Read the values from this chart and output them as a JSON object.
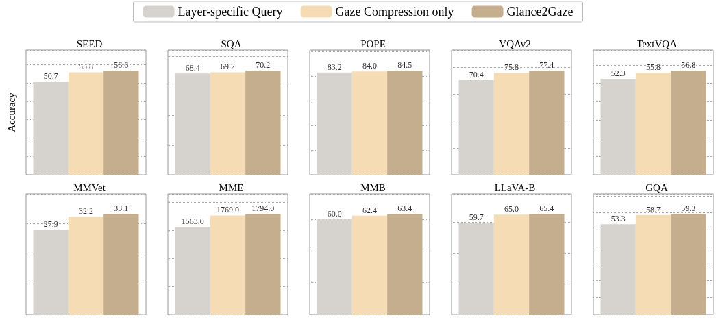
{
  "chart_data": [
    {
      "type": "bar",
      "title": "SEED",
      "ylabel": "Accuracy",
      "categories": [
        null
      ],
      "legend": "top",
      "grid": "y",
      "tick_labels": false,
      "series": [
        {
          "name": "Layer-specific Query",
          "color": "#d6d3cf",
          "values": [
            50.7
          ],
          "value_labels": [
            "50.7"
          ]
        },
        {
          "name": "Gaze Compression only",
          "color": "#f5dcb5",
          "values": [
            55.8
          ],
          "value_labels": [
            "55.8"
          ]
        },
        {
          "name": "Glance2Gaze",
          "color": "#c4ae8e",
          "values": [
            56.6
          ],
          "value_labels": [
            "56.6"
          ]
        }
      ]
    },
    {
      "type": "bar",
      "title": "SQA",
      "categories": [
        null
      ],
      "grid": "y",
      "tick_labels": false,
      "series": [
        {
          "color": "#d6d3cf",
          "values": [
            68.4
          ],
          "value_labels": [
            "68.4"
          ]
        },
        {
          "color": "#f5dcb5",
          "values": [
            69.2
          ],
          "value_labels": [
            "69.2"
          ]
        },
        {
          "color": "#c4ae8e",
          "values": [
            70.2
          ],
          "value_labels": [
            "70.2"
          ]
        }
      ]
    },
    {
      "type": "bar",
      "title": "POPE",
      "categories": [
        null
      ],
      "grid": "y",
      "tick_labels": false,
      "series": [
        {
          "color": "#d6d3cf",
          "values": [
            83.2
          ],
          "value_labels": [
            "83.2"
          ]
        },
        {
          "color": "#f5dcb5",
          "values": [
            84.0
          ],
          "value_labels": [
            "84.0"
          ]
        },
        {
          "color": "#c4ae8e",
          "values": [
            84.5
          ],
          "value_labels": [
            "84.5"
          ]
        }
      ]
    },
    {
      "type": "bar",
      "title": "VQAv2",
      "categories": [
        null
      ],
      "grid": "y",
      "tick_labels": false,
      "series": [
        {
          "color": "#d6d3cf",
          "values": [
            70.4
          ],
          "value_labels": [
            "70.4"
          ]
        },
        {
          "color": "#f5dcb5",
          "values": [
            75.8
          ],
          "value_labels": [
            "75.8"
          ]
        },
        {
          "color": "#c4ae8e",
          "values": [
            77.4
          ],
          "value_labels": [
            "77.4"
          ]
        }
      ]
    },
    {
      "type": "bar",
      "title": "TextVQA",
      "categories": [
        null
      ],
      "grid": "y",
      "tick_labels": false,
      "series": [
        {
          "color": "#d6d3cf",
          "values": [
            52.3
          ],
          "value_labels": [
            "52.3"
          ]
        },
        {
          "color": "#f5dcb5",
          "values": [
            55.8
          ],
          "value_labels": [
            "55.8"
          ]
        },
        {
          "color": "#c4ae8e",
          "values": [
            56.8
          ],
          "value_labels": [
            "56.8"
          ]
        }
      ]
    },
    {
      "type": "bar",
      "title": "MMVet",
      "categories": [
        null
      ],
      "grid": "y",
      "tick_labels": false,
      "series": [
        {
          "color": "#d6d3cf",
          "values": [
            27.9
          ],
          "value_labels": [
            "27.9"
          ]
        },
        {
          "color": "#f5dcb5",
          "values": [
            32.2
          ],
          "value_labels": [
            "32.2"
          ]
        },
        {
          "color": "#c4ae8e",
          "values": [
            33.1
          ],
          "value_labels": [
            "33.1"
          ]
        }
      ]
    },
    {
      "type": "bar",
      "title": "MME",
      "categories": [
        null
      ],
      "grid": "y",
      "tick_labels": false,
      "series": [
        {
          "color": "#d6d3cf",
          "values": [
            1563.0
          ],
          "value_labels": [
            "1563.0"
          ]
        },
        {
          "color": "#f5dcb5",
          "values": [
            1769.0
          ],
          "value_labels": [
            "1769.0"
          ]
        },
        {
          "color": "#c4ae8e",
          "values": [
            1794.0
          ],
          "value_labels": [
            "1794.0"
          ]
        }
      ]
    },
    {
      "type": "bar",
      "title": "MMB",
      "categories": [
        null
      ],
      "grid": "y",
      "tick_labels": false,
      "series": [
        {
          "color": "#d6d3cf",
          "values": [
            60.0
          ],
          "value_labels": [
            "60.0"
          ]
        },
        {
          "color": "#f5dcb5",
          "values": [
            62.4
          ],
          "value_labels": [
            "62.4"
          ]
        },
        {
          "color": "#c4ae8e",
          "values": [
            63.4
          ],
          "value_labels": [
            "63.4"
          ]
        }
      ]
    },
    {
      "type": "bar",
      "title": "LLaVA-B",
      "categories": [
        null
      ],
      "grid": "y",
      "tick_labels": false,
      "series": [
        {
          "color": "#d6d3cf",
          "values": [
            59.7
          ],
          "value_labels": [
            "59.7"
          ]
        },
        {
          "color": "#f5dcb5",
          "values": [
            65.0
          ],
          "value_labels": [
            "65.0"
          ]
        },
        {
          "color": "#c4ae8e",
          "values": [
            65.4
          ],
          "value_labels": [
            "65.4"
          ]
        }
      ]
    },
    {
      "type": "bar",
      "title": "GQA",
      "categories": [
        null
      ],
      "grid": "y",
      "tick_labels": false,
      "series": [
        {
          "color": "#d6d3cf",
          "values": [
            53.3
          ],
          "value_labels": [
            "53.3"
          ]
        },
        {
          "color": "#f5dcb5",
          "values": [
            58.7
          ],
          "value_labels": [
            "58.7"
          ]
        },
        {
          "color": "#c4ae8e",
          "values": [
            59.3
          ],
          "value_labels": [
            "59.3"
          ]
        }
      ]
    }
  ]
}
